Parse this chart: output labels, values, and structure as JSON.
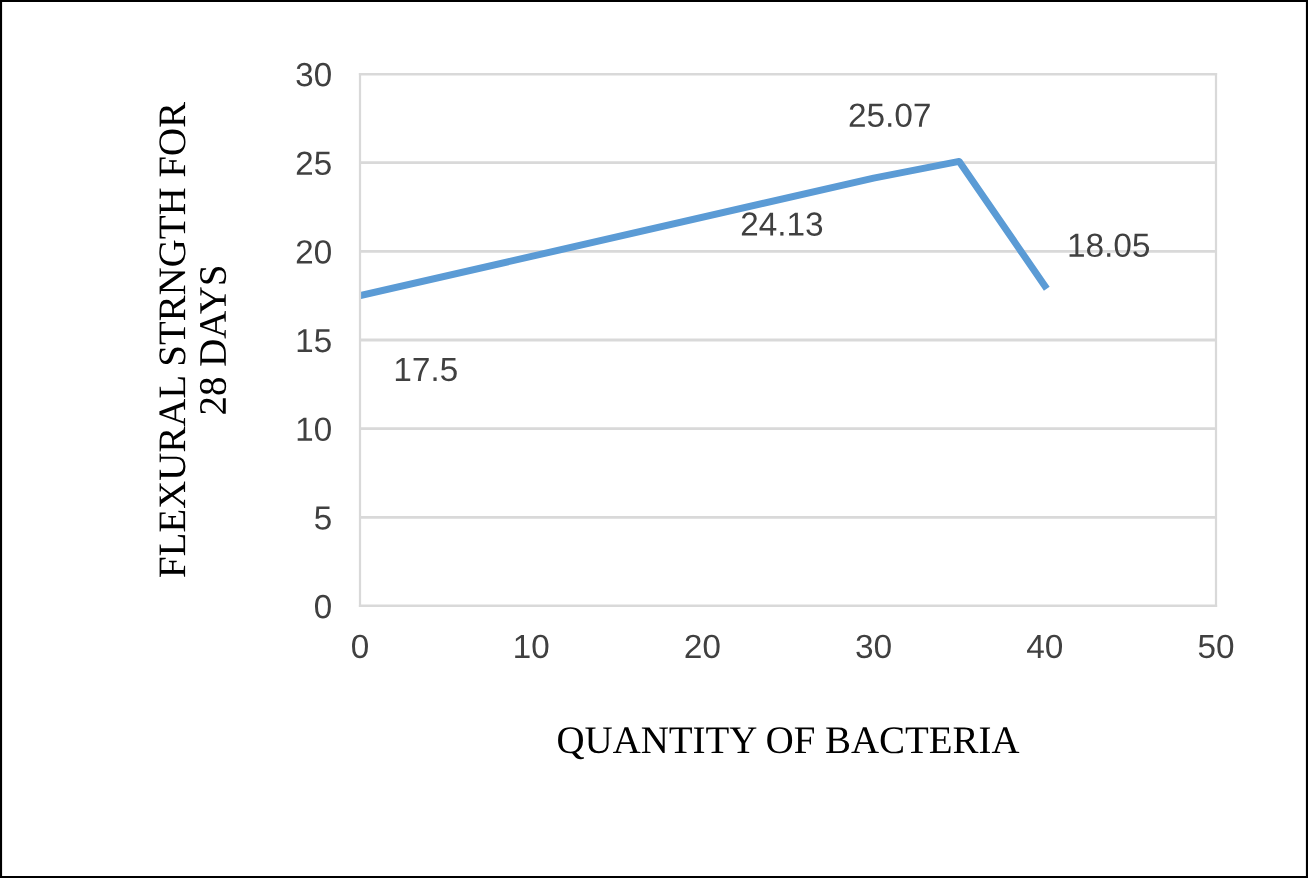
{
  "chart_data": {
    "type": "line",
    "xlabel": "QUANTITY OF BACTERIA",
    "ylabel": "FLEXURAL STRNGTH FOR\n28 DAYS",
    "x": [
      0,
      30,
      35,
      40
    ],
    "series": [
      {
        "color": "#5b9bd5",
        "values": [
          17.5,
          24.13,
          25.07,
          18.05
        ]
      }
    ],
    "xlim": [
      0,
      50
    ],
    "xticks": [
      0,
      10,
      20,
      30,
      40,
      50
    ],
    "ylim": [
      0,
      30
    ],
    "yticks": [
      0,
      5,
      10,
      15,
      20,
      25,
      30
    ],
    "grid": "y",
    "legend": false,
    "marker": "none",
    "line_style": "solid",
    "data_labels": true
  }
}
